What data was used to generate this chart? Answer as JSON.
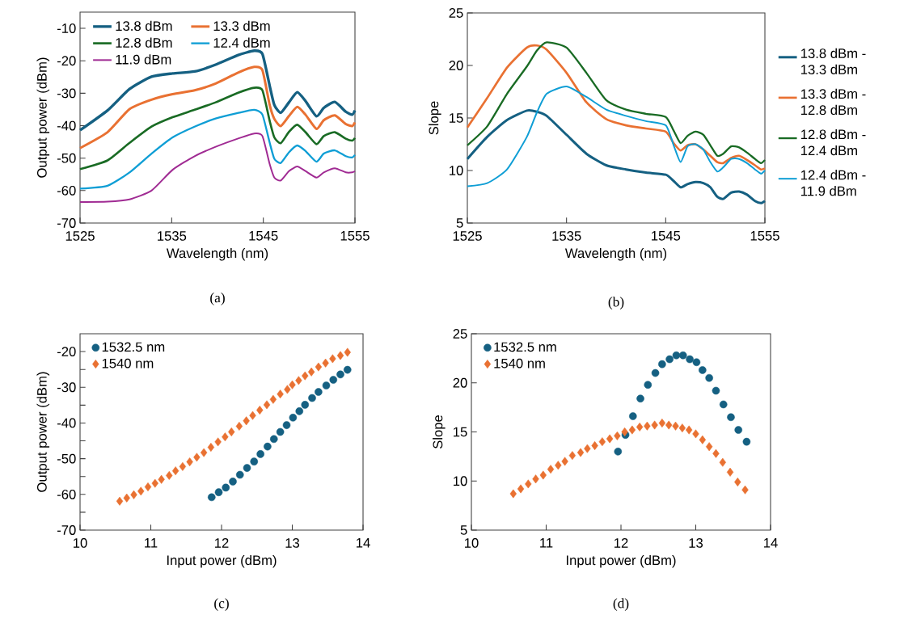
{
  "chart_data": [
    {
      "type": "line",
      "xlabel": "Wavelength (nm)",
      "ylabel": "Output power (dBm)",
      "xlim": [
        1525,
        1555
      ],
      "xticks": [
        1525,
        1535,
        1545,
        1555
      ],
      "ylim": [
        -70,
        -5
      ],
      "yticks": [
        -70,
        -60,
        -50,
        -40,
        -30,
        -20,
        -10
      ],
      "legend": "top left",
      "annotations": [
        "(a)"
      ],
      "x": [
        1525,
        1528,
        1530.4,
        1532.8,
        1535.1,
        1537.5,
        1539.8,
        1542.2,
        1544,
        1544.9,
        1545.7,
        1546.2,
        1546.9,
        1547.8,
        1548.7,
        1549.6,
        1550.8,
        1551.6,
        1552.8,
        1554,
        1554.7,
        1555
      ],
      "series": [
        {
          "name": "13.8 dBm",
          "color": "#156082",
          "values": [
            -41.4,
            -35.3,
            -28.7,
            -24.9,
            -23.9,
            -23.3,
            -21.2,
            -18.3,
            -16.9,
            -17.9,
            -27.8,
            -33.6,
            -36,
            -32.8,
            -29.7,
            -32.4,
            -37.1,
            -34.5,
            -32.7,
            -35.7,
            -36.6,
            -35.3
          ]
        },
        {
          "name": "13.3 dBm",
          "color": "#e97132",
          "values": [
            -46.9,
            -42,
            -34.9,
            -32,
            -30.3,
            -29.1,
            -27,
            -23.7,
            -21.9,
            -22.9,
            -33.7,
            -37.9,
            -40.1,
            -37,
            -34.2,
            -36.6,
            -41,
            -38.3,
            -36.8,
            -39.5,
            -40.1,
            -39
          ]
        },
        {
          "name": "12.8 dBm",
          "color": "#196b24",
          "values": [
            -53.4,
            -50.7,
            -45.3,
            -40.3,
            -37.4,
            -35.1,
            -32.8,
            -29.9,
            -28.3,
            -29.1,
            -38.6,
            -43.6,
            -45.4,
            -41.9,
            -39.7,
            -42,
            -45.7,
            -43.2,
            -42,
            -44,
            -44.6,
            -43.8
          ]
        },
        {
          "name": "12.4 dBm",
          "color": "#0f9ed5",
          "values": [
            -59.4,
            -58.5,
            -54.4,
            -48.6,
            -43.6,
            -40.3,
            -37.8,
            -36.1,
            -35.1,
            -36.6,
            -45.3,
            -50.2,
            -51.5,
            -48.2,
            -46.1,
            -47.8,
            -51.1,
            -48.6,
            -47.6,
            -49.4,
            -49.8,
            -49
          ]
        },
        {
          "name": "11.9 dBm",
          "color": "#a02b93",
          "values": [
            -63.5,
            -63.4,
            -62.7,
            -60,
            -53.6,
            -49.4,
            -46.5,
            -44,
            -42.4,
            -43.2,
            -51.9,
            -56,
            -56.9,
            -54,
            -52.6,
            -54,
            -56,
            -54.4,
            -53.1,
            -54.4,
            -54.4,
            -54
          ]
        }
      ]
    },
    {
      "type": "line",
      "xlabel": "Wavelength (nm)",
      "ylabel": "Slope",
      "xlim": [
        1525,
        1555
      ],
      "xticks": [
        1525,
        1535,
        1545,
        1555
      ],
      "ylim": [
        5,
        25
      ],
      "yticks": [
        5,
        10,
        15,
        20,
        25
      ],
      "legend": "right",
      "annotations": [
        "(b)"
      ],
      "x": [
        1525,
        1527,
        1529,
        1531,
        1532,
        1533,
        1535,
        1537,
        1539,
        1541,
        1543,
        1545,
        1545.8,
        1546.5,
        1547.2,
        1548,
        1548.8,
        1549.5,
        1550.2,
        1550.8,
        1551.6,
        1552.4,
        1553.2,
        1554,
        1554.6,
        1555
      ],
      "series": [
        {
          "name": "13.8 dBm - 13.3 dBm",
          "color": "#156082",
          "values": [
            11.1,
            13.2,
            14.8,
            15.7,
            15.6,
            15.2,
            13.4,
            11.6,
            10.5,
            10.1,
            9.8,
            9.6,
            9.0,
            8.4,
            8.7,
            8.9,
            8.8,
            8.4,
            7.5,
            7.3,
            7.9,
            8.0,
            7.7,
            7.1,
            6.9,
            7.1
          ]
        },
        {
          "name": "13.3 dBm - 12.8 dBm",
          "color": "#e97132",
          "values": [
            14.1,
            16.9,
            19.8,
            21.7,
            21.9,
            21.5,
            19.3,
            16.5,
            14.9,
            14.3,
            14.0,
            13.7,
            12.6,
            11.9,
            12.4,
            12.5,
            12.0,
            11.4,
            10.8,
            10.7,
            11.2,
            11.4,
            11.0,
            10.5,
            10.1,
            10.2
          ]
        },
        {
          "name": "12.8 dBm - 12.4 dBm",
          "color": "#196b24",
          "values": [
            12.4,
            14.2,
            17.3,
            19.9,
            21.4,
            22.2,
            21.7,
            19.3,
            16.7,
            15.8,
            15.4,
            15.1,
            13.8,
            12.6,
            13.3,
            13.7,
            13.4,
            12.4,
            11.4,
            11.6,
            12.3,
            12.2,
            11.7,
            11.1,
            10.7,
            11.0
          ]
        },
        {
          "name": "12.4 dBm - 11.9 dBm",
          "color": "#0f9ed5",
          "values": [
            8.5,
            8.8,
            10.1,
            13.2,
            15.5,
            17.3,
            18.0,
            17.0,
            15.8,
            15.2,
            14.7,
            14.3,
            12.4,
            10.8,
            12.3,
            12.5,
            12.0,
            10.8,
            9.9,
            10.3,
            11.1,
            11.1,
            10.7,
            10.1,
            9.7,
            10.0
          ]
        }
      ]
    },
    {
      "type": "scatter",
      "xlabel": "Input power (dBm)",
      "ylabel": "Output power (dBm)",
      "xlim": [
        10,
        14
      ],
      "xticks": [
        10,
        11,
        12,
        13,
        14
      ],
      "ylim": [
        -70,
        -15
      ],
      "yticks": [
        -70,
        {
          "value": -65,
          "label": null
        },
        -60,
        {
          "value": -55,
          "label": null
        },
        -50,
        {
          "value": -45,
          "label": null
        },
        -40,
        {
          "value": -35,
          "label": null
        },
        -30,
        {
          "value": -25,
          "label": null
        },
        -20
      ],
      "legend": "top left",
      "annotations": [
        "(c)"
      ],
      "series": [
        {
          "name": "1532.5 nm",
          "color": "#156082",
          "marker": "circle",
          "x": [
            11.86,
            11.96,
            12.06,
            12.16,
            12.26,
            12.36,
            12.46,
            12.55,
            12.65,
            12.74,
            12.83,
            12.92,
            13.01,
            13.1,
            13.18,
            13.28,
            13.37,
            13.48,
            13.58,
            13.68,
            13.78
          ],
          "values": [
            -60.8,
            -59.4,
            -58.1,
            -56.4,
            -54.5,
            -52.6,
            -50.8,
            -48.7,
            -46.6,
            -44.5,
            -42.5,
            -40.6,
            -38.5,
            -36.7,
            -34.9,
            -33,
            -31.3,
            -29.5,
            -27.9,
            -26.4,
            -25.1
          ]
        },
        {
          "name": "1540 nm",
          "color": "#e97132",
          "marker": "diamond",
          "x": [
            10.56,
            10.66,
            10.76,
            10.86,
            10.96,
            11.06,
            11.15,
            11.26,
            11.35,
            11.45,
            11.55,
            11.65,
            11.75,
            11.85,
            11.95,
            12.05,
            12.14,
            12.25,
            12.35,
            12.44,
            12.54,
            12.64,
            12.73,
            12.83,
            12.93,
            13.0,
            13.09,
            13.18,
            13.27,
            13.37,
            13.47,
            13.57,
            13.68,
            13.78
          ],
          "values": [
            -61.9,
            -61,
            -60.1,
            -59.1,
            -57.9,
            -56.9,
            -55.8,
            -54.7,
            -53.4,
            -52.2,
            -50.9,
            -49.6,
            -48.3,
            -46.8,
            -45.3,
            -43.9,
            -42.5,
            -40.9,
            -39.4,
            -37.9,
            -36.4,
            -34.9,
            -33.4,
            -31.9,
            -30.6,
            -29.3,
            -28.1,
            -26.8,
            -25.7,
            -24.3,
            -23.2,
            -22,
            -21.1,
            -20.2
          ]
        }
      ]
    },
    {
      "type": "scatter",
      "xlabel": "Input power (dBm)",
      "ylabel": "Slope",
      "xlim": [
        10,
        14
      ],
      "xticks": [
        10,
        11,
        12,
        13,
        14
      ],
      "ylim": [
        5,
        25
      ],
      "yticks": [
        5,
        10,
        15,
        20,
        25
      ],
      "legend": "top left",
      "annotations": [
        "(d)"
      ],
      "series": [
        {
          "name": "1532.5 nm",
          "color": "#156082",
          "marker": "circle",
          "x": [
            11.96,
            12.06,
            12.16,
            12.26,
            12.36,
            12.46,
            12.55,
            12.65,
            12.74,
            12.83,
            12.92,
            13.01,
            13.09,
            13.18,
            13.27,
            13.37,
            13.47,
            13.57,
            13.68
          ],
          "values": [
            13.0,
            14.7,
            16.6,
            18.4,
            19.8,
            21.0,
            21.9,
            22.4,
            22.8,
            22.8,
            22.4,
            22.1,
            21.3,
            20.5,
            19.2,
            17.8,
            16.5,
            15.2,
            14.0
          ]
        },
        {
          "name": "1540 nm",
          "color": "#e97132",
          "marker": "diamond",
          "x": [
            10.56,
            10.66,
            10.76,
            10.86,
            10.96,
            11.06,
            11.16,
            11.25,
            11.35,
            11.46,
            11.55,
            11.65,
            11.75,
            11.85,
            11.95,
            12.05,
            12.15,
            12.25,
            12.35,
            12.45,
            12.55,
            12.64,
            12.73,
            12.82,
            12.91,
            13.0,
            13.09,
            13.18,
            13.27,
            13.36,
            13.46,
            13.56,
            13.66
          ],
          "values": [
            8.7,
            9.2,
            9.7,
            10.2,
            10.6,
            11.2,
            11.6,
            12.0,
            12.6,
            12.9,
            13.3,
            13.6,
            14.0,
            14.3,
            14.6,
            15.0,
            15.2,
            15.5,
            15.6,
            15.7,
            15.9,
            15.7,
            15.6,
            15.4,
            15.2,
            14.8,
            14.2,
            13.5,
            12.8,
            11.9,
            10.9,
            9.9,
            9.1
          ]
        }
      ]
    }
  ]
}
